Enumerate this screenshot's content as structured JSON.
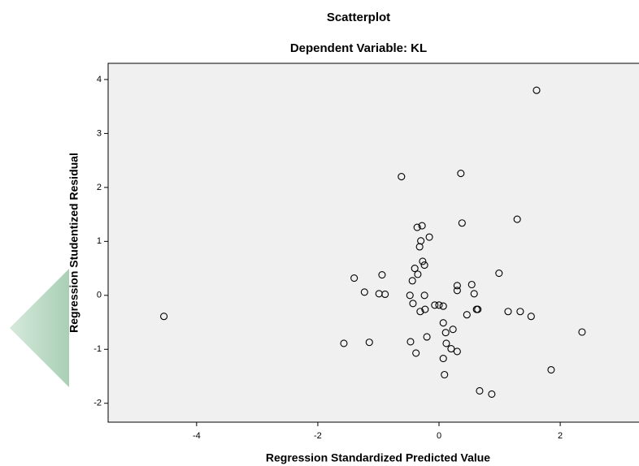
{
  "chart_data": {
    "type": "scatter",
    "title": "Scatterplot",
    "subtitle": "Dependent Variable: KL",
    "x_label": "Regression Standardized Predicted Value",
    "y_label": "Regression Studentized Residual",
    "x": [
      1.61,
      -0.62,
      0.36,
      1.29,
      0.38,
      -0.36,
      -0.28,
      -0.16,
      -0.3,
      -0.32,
      -0.27,
      -0.24,
      -0.4,
      -0.35,
      -0.94,
      -1.4,
      -0.44,
      0.99,
      0.3,
      0.3,
      0.54,
      0.58,
      -1.23,
      -0.99,
      -0.89,
      -0.48,
      -0.24,
      -0.43,
      -0.07,
      0.0,
      0.07,
      -0.23,
      -0.31,
      0.62,
      0.64,
      0.46,
      1.14,
      1.34,
      1.52,
      -4.54,
      2.36,
      0.07,
      0.11,
      0.23,
      -0.2,
      -0.47,
      0.12,
      -1.57,
      -1.15,
      0.2,
      0.3,
      -0.38,
      0.07,
      1.85,
      0.09,
      0.67,
      0.87
    ],
    "y": [
      3.8,
      2.2,
      2.26,
      1.41,
      1.34,
      1.26,
      1.29,
      1.08,
      1.01,
      0.9,
      0.63,
      0.56,
      0.5,
      0.39,
      0.38,
      0.32,
      0.27,
      0.41,
      0.18,
      0.09,
      0.2,
      0.03,
      0.06,
      0.03,
      0.02,
      0.0,
      0.0,
      -0.15,
      -0.18,
      -0.18,
      -0.2,
      -0.26,
      -0.3,
      -0.26,
      -0.26,
      -0.36,
      -0.3,
      -0.3,
      -0.39,
      -0.39,
      -0.68,
      -0.51,
      -0.69,
      -0.63,
      -0.77,
      -0.86,
      -0.89,
      -0.89,
      -0.87,
      -0.99,
      -1.04,
      -1.07,
      -1.17,
      -1.38,
      -1.47,
      -1.77,
      -1.83
    ],
    "xlim": [
      -5.46,
      3.3
    ],
    "ylim": [
      -2.35,
      4.3
    ],
    "xticks": [
      -4,
      -2,
      0,
      2
    ],
    "yticks": [
      -2,
      -1,
      0,
      1,
      2,
      3,
      4
    ],
    "background": "#f0f0f0",
    "marker_color": "#000000"
  }
}
